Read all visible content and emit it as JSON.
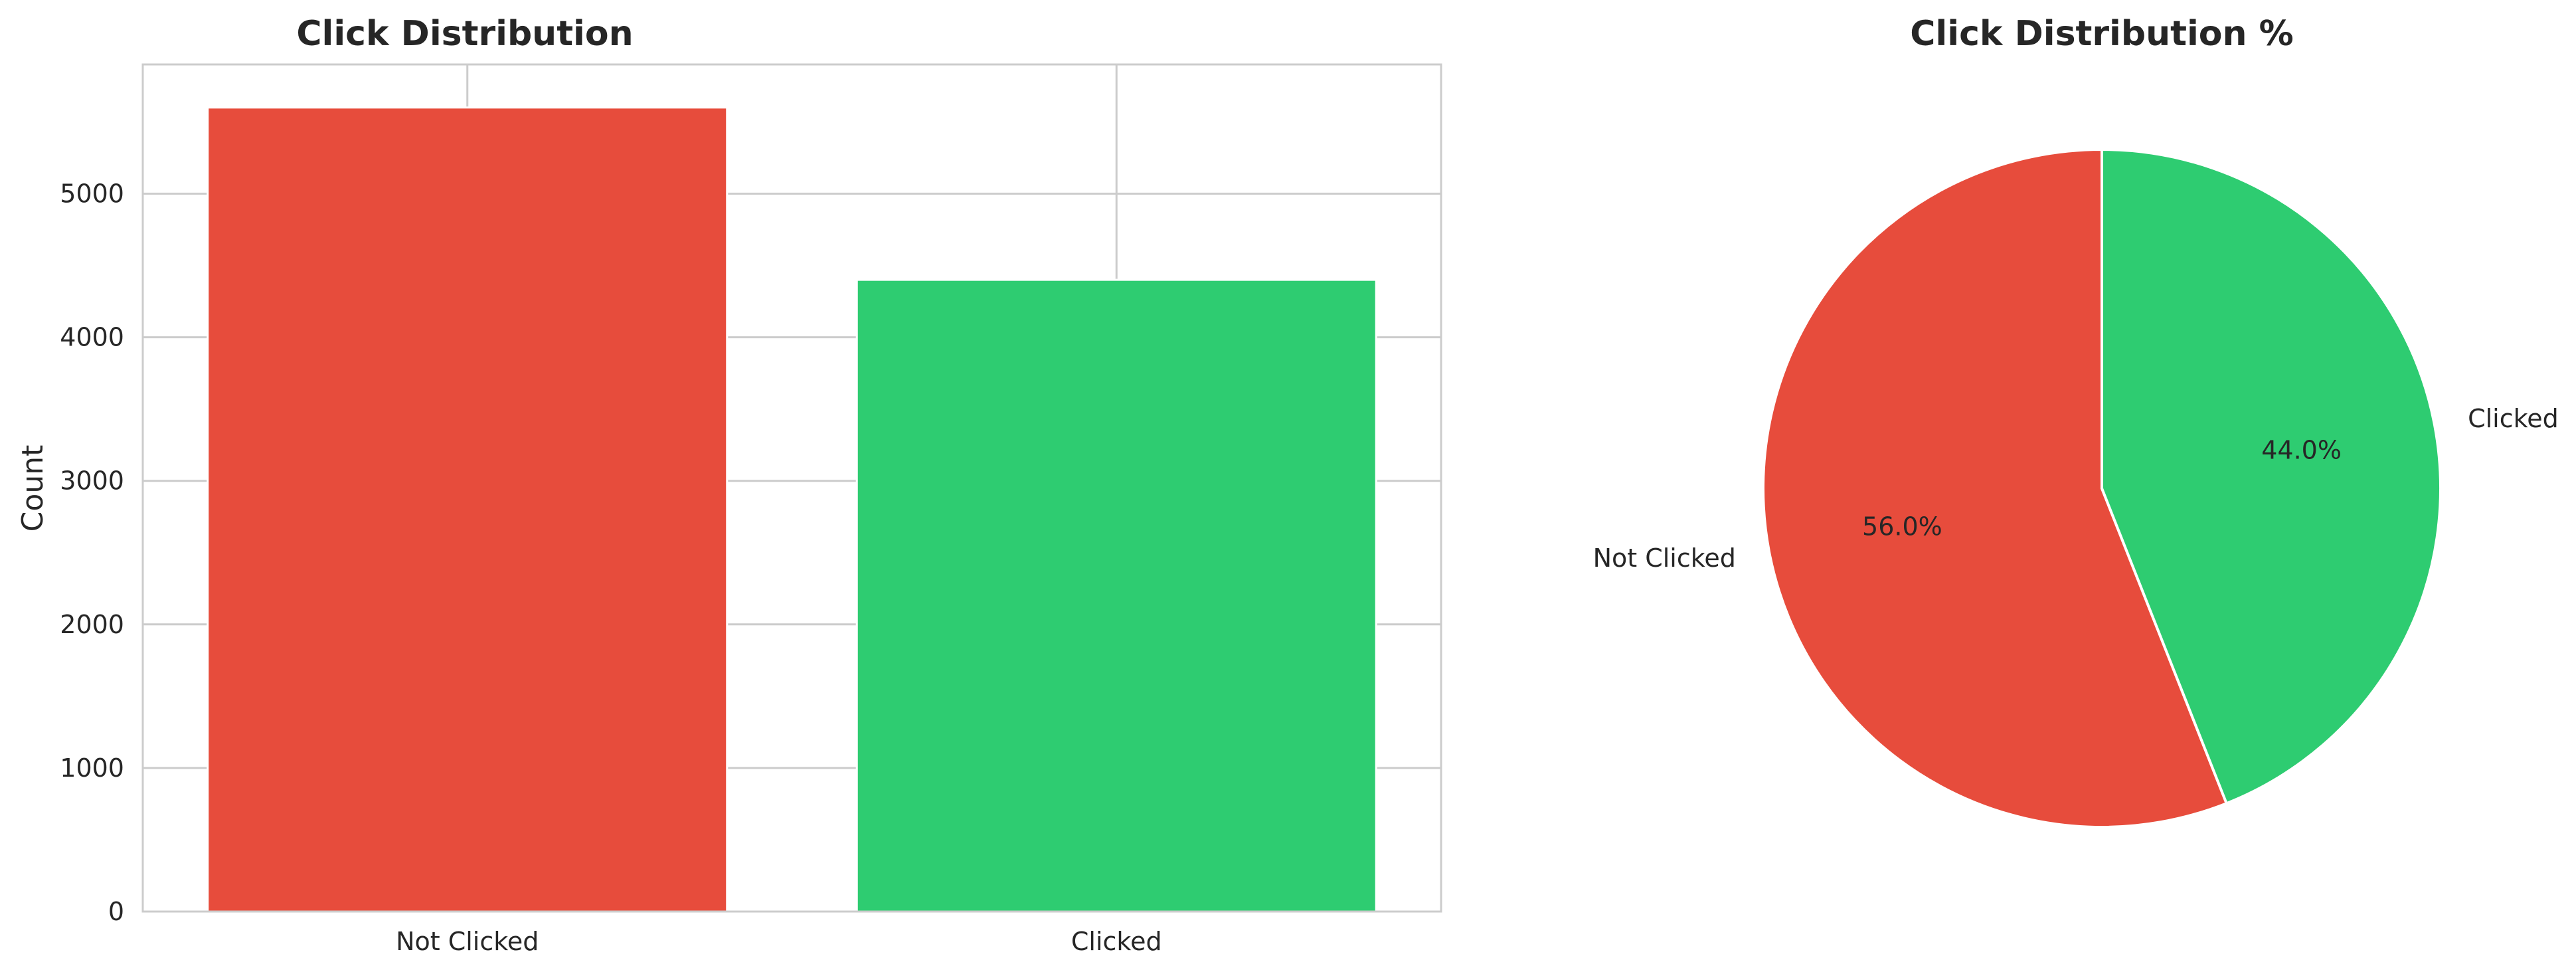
{
  "chart_data": [
    {
      "type": "bar",
      "title": "Click Distribution",
      "xlabel": "",
      "ylabel": "Count",
      "categories": [
        "Not Clicked",
        "Clicked"
      ],
      "values": [
        5600,
        4400
      ],
      "colors": [
        "#e74c3c",
        "#2ecc71"
      ],
      "ylim": [
        0,
        5900
      ],
      "yticks": [
        0,
        1000,
        2000,
        3000,
        4000,
        5000
      ],
      "grid": true
    },
    {
      "type": "pie",
      "title": "Click Distribution %",
      "labels": [
        "Not Clicked",
        "Clicked"
      ],
      "values": [
        56.0,
        44.0
      ],
      "percent_labels": [
        "56.0%",
        "44.0%"
      ],
      "colors": [
        "#e74c3c",
        "#2ecc71"
      ]
    }
  ]
}
